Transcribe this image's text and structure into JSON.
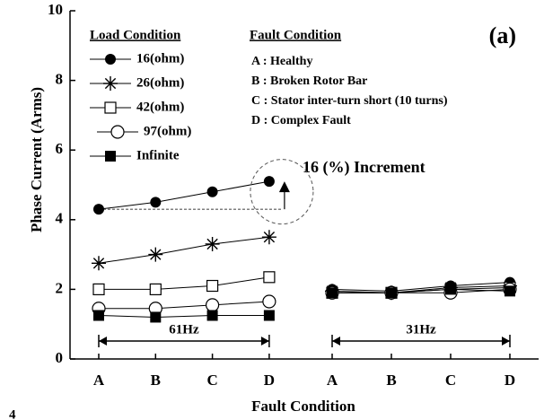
{
  "chart_data": {
    "type": "line",
    "panel_label": "(a)",
    "y_label": "Phase Current (Arms)",
    "x_label": "Fault Condition",
    "fragment": "4",
    "ylim": [
      0,
      10
    ],
    "yticks": [
      0,
      2,
      4,
      6,
      8,
      10
    ],
    "group_labels": [
      "61Hz",
      "31Hz"
    ],
    "categories": [
      [
        "A",
        "B",
        "C",
        "D"
      ],
      [
        "A",
        "B",
        "C",
        "D"
      ]
    ],
    "legend_title": "Load Condition",
    "fault_title": "Fault Condition",
    "fault_items": [
      "A : Healthy",
      "B : Broken Rotor Bar",
      "C : Stator inter-turn short (10 turns)",
      "D : Complex Fault"
    ],
    "annotation": "16 (%) Increment",
    "series": [
      {
        "name": "16(ohm)",
        "marker": "filled-circle",
        "color": "#000000",
        "values": [
          [
            4.3,
            4.5,
            4.8,
            5.1
          ],
          [
            2.0,
            1.95,
            2.1,
            2.2
          ]
        ]
      },
      {
        "name": "26(ohm)",
        "marker": "asterisk",
        "color": "#000000",
        "values": [
          [
            2.75,
            3.0,
            3.3,
            3.5
          ],
          [
            1.95,
            1.9,
            2.05,
            2.1
          ]
        ]
      },
      {
        "name": "42(ohm)",
        "marker": "open-square",
        "color": "#000000",
        "values": [
          [
            2.0,
            2.0,
            2.1,
            2.35
          ],
          [
            1.9,
            1.9,
            2.0,
            2.05
          ]
        ]
      },
      {
        "name": "97(ohm)",
        "marker": "open-circle",
        "color": "#000000",
        "values": [
          [
            1.45,
            1.45,
            1.55,
            1.65
          ],
          [
            1.9,
            1.9,
            1.9,
            2.0
          ]
        ]
      },
      {
        "name": "Infinite",
        "marker": "filled-square",
        "color": "#000000",
        "values": [
          [
            1.25,
            1.2,
            1.25,
            1.25
          ],
          [
            1.9,
            1.9,
            2.0,
            1.95
          ]
        ]
      }
    ]
  }
}
